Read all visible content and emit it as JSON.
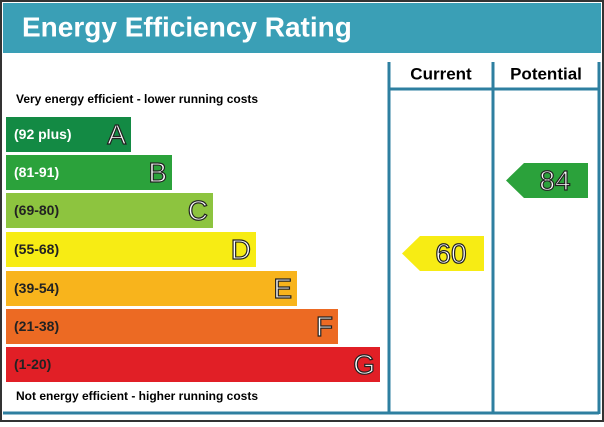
{
  "header": {
    "title": "Energy Efficiency Rating"
  },
  "columns": [
    "Current",
    "Potential"
  ],
  "top_note": "Very energy efficient - lower running costs",
  "bottom_note": "Not energy efficient - higher running costs",
  "bands": [
    {
      "range": "(92 plus)",
      "letter": "A",
      "color": "#138a44"
    },
    {
      "range": "(81-91)",
      "letter": "B",
      "color": "#2ba23b"
    },
    {
      "range": "(69-80)",
      "letter": "C",
      "color": "#8dc43f"
    },
    {
      "range": "(55-68)",
      "letter": "D",
      "color": "#f7ec14"
    },
    {
      "range": "(39-54)",
      "letter": "E",
      "color": "#f8b41c"
    },
    {
      "range": "(21-38)",
      "letter": "F",
      "color": "#ec6a23"
    },
    {
      "range": "(1-20)",
      "letter": "G",
      "color": "#e11f26"
    }
  ],
  "current": {
    "value": 60,
    "color": "#f7ec14"
  },
  "potential": {
    "value": 84,
    "color": "#2ba23b"
  }
}
